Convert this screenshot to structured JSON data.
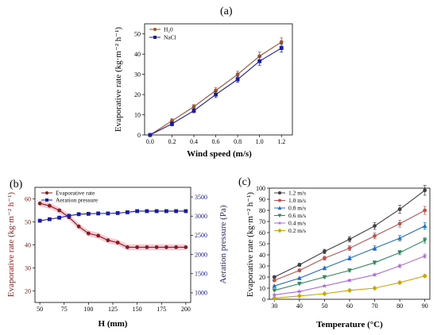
{
  "figure": {
    "panels": [
      "(a)",
      "(b)",
      "(c)"
    ]
  },
  "colors": {
    "h2o": "#a0522d",
    "nacl": "#1a1aa8",
    "evap_b": "#8b1a1a",
    "aeration_b": "#1a1aa8",
    "c_12": "#404040",
    "c_10": "#c0504d",
    "c_08": "#1f6fd1",
    "c_06": "#2e8b57",
    "c_04": "#b36bd9",
    "c_02": "#c9a700",
    "band_b": "#f4b6c8"
  },
  "chart_data": [
    {
      "id": "a",
      "type": "line",
      "title": "",
      "xlabel": "Wind speed (m/s)",
      "ylabel": "Evaporative rate (kg·m⁻² h⁻¹)",
      "xlim": [
        -0.05,
        1.3
      ],
      "ylim": [
        0,
        55
      ],
      "xticks": [
        "0.0",
        "0.2",
        "0.4",
        "0.6",
        "0.8",
        "1.0",
        "1.2"
      ],
      "yticks": [
        "0",
        "10",
        "20",
        "30",
        "40",
        "50"
      ],
      "x": [
        0.0,
        0.2,
        0.4,
        0.6,
        0.8,
        1.0,
        1.2
      ],
      "series": [
        {
          "name": "H₂0",
          "values": [
            0,
            7,
            14,
            22,
            30,
            39,
            46
          ],
          "err": [
            0.5,
            1,
            1,
            1.5,
            1.5,
            2,
            2
          ]
        },
        {
          "name": "NaCl",
          "values": [
            0,
            5.5,
            12,
            20,
            27.5,
            36.5,
            43
          ],
          "err": [
            0.5,
            1,
            1,
            1.5,
            1.5,
            2,
            2
          ]
        }
      ],
      "legend": "top-left"
    },
    {
      "id": "b",
      "type": "line",
      "xlabel": "H (mm)",
      "ylabel": "Evaporative rate (kg·m⁻² h⁻¹)",
      "ylabel_right": "Aeration pressure (Pa)",
      "xlim": [
        45,
        205
      ],
      "ylim": [
        15,
        65
      ],
      "ylim_right": [
        750,
        3750
      ],
      "xticks": [
        "50",
        "75",
        "100",
        "125",
        "150",
        "175",
        "200"
      ],
      "yticks": [
        "20",
        "30",
        "40",
        "50",
        "60"
      ],
      "yticks_right": [
        "1000",
        "1500",
        "2000",
        "2500",
        "3000",
        "3500"
      ],
      "x": [
        50,
        60,
        70,
        80,
        90,
        100,
        110,
        120,
        130,
        140,
        150,
        160,
        170,
        180,
        190,
        200
      ],
      "series": [
        {
          "name": "Evaporative rate",
          "axis": "left",
          "values": [
            58,
            57,
            55,
            52,
            48,
            45,
            44,
            42,
            41,
            39,
            39,
            39,
            39,
            39,
            39,
            39
          ]
        },
        {
          "name": "Aeration pressure",
          "axis": "right",
          "values": [
            2880,
            2920,
            2960,
            3010,
            3050,
            3060,
            3070,
            3070,
            3080,
            3100,
            3130,
            3130,
            3130,
            3130,
            3130,
            3130
          ]
        }
      ],
      "legend": "top-left"
    },
    {
      "id": "c",
      "type": "line",
      "xlabel": "Temperature (°C)",
      "ylabel": "Evaporative rate (kg·m⁻² h⁻¹)",
      "xlim": [
        28,
        92
      ],
      "ylim": [
        0,
        100
      ],
      "xticks": [
        "30",
        "40",
        "50",
        "60",
        "70",
        "80",
        "90"
      ],
      "yticks": [
        "0",
        "10",
        "20",
        "30",
        "40",
        "50",
        "60",
        "70",
        "80",
        "90",
        "100"
      ],
      "x": [
        30,
        40,
        50,
        60,
        70,
        80,
        90
      ],
      "series": [
        {
          "name": "1.2 m/s",
          "values": [
            20,
            31,
            43,
            54,
            66,
            81,
            98
          ]
        },
        {
          "name": "1.0 m/s",
          "values": [
            17,
            26,
            37,
            46,
            57,
            68,
            80
          ]
        },
        {
          "name": "0.8 m/s",
          "values": [
            12,
            19,
            28,
            37,
            46,
            55,
            66
          ]
        },
        {
          "name": "0.6 m/s",
          "values": [
            8,
            14,
            20,
            26,
            33,
            42,
            53
          ]
        },
        {
          "name": "0.4 m/s",
          "values": [
            4,
            7,
            12,
            17,
            22,
            30,
            39
          ]
        },
        {
          "name": "0.2 m/s",
          "values": [
            1,
            3,
            5,
            8,
            10,
            15,
            21
          ]
        }
      ],
      "legend": "top-left"
    }
  ]
}
